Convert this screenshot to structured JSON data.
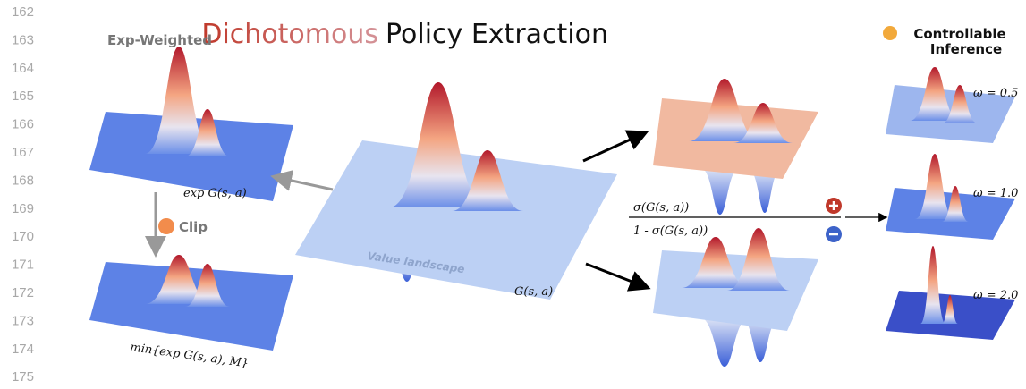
{
  "line_numbers": [
    "162",
    "163",
    "164",
    "165",
    "166",
    "167",
    "168",
    "169",
    "170",
    "171",
    "172",
    "173",
    "174",
    "175"
  ],
  "title": {
    "colored": "Dichotomous",
    "plain": "Policy Extraction"
  },
  "left": {
    "title": "Exp-Weighted",
    "top_label": "exp G(s, a)",
    "clip_label": "Clip",
    "bottom_label": "min{exp G(s, a), M}"
  },
  "center": {
    "surface_label": "Value landscape",
    "label": "G(s, a)"
  },
  "fraction": {
    "numerator": "σ(G(s, a))",
    "denominator": "1 - σ(G(s, a))"
  },
  "right": {
    "title_lines": [
      "Controllable",
      "Inference"
    ],
    "omegas": [
      "ω = 0.5",
      "ω = 1.0",
      "ω = 2.0"
    ]
  }
}
